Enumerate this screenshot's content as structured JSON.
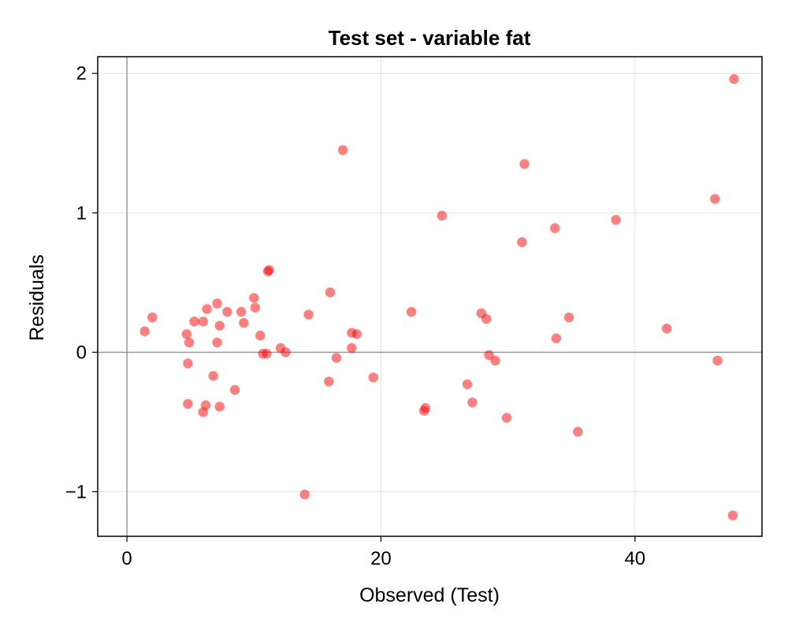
{
  "chart_data": {
    "type": "scatter",
    "title": "Test set - variable fat",
    "xlabel": "Observed (Test)",
    "ylabel": "Residuals",
    "xlim": [
      -2.3,
      50
    ],
    "ylim": [
      -1.32,
      2.12
    ],
    "x_ticks": [
      0,
      20,
      40
    ],
    "y_ticks": [
      -1,
      0,
      1,
      2
    ],
    "y_tick_labels": [
      "−1",
      "0",
      "1",
      "2"
    ],
    "grid": true,
    "reference_lines": {
      "x": 0,
      "y": 0
    },
    "marker_color": "#ff0000",
    "marker_opacity": 0.5,
    "points": [
      {
        "x": 1.4,
        "y": 0.15
      },
      {
        "x": 2.0,
        "y": 0.25
      },
      {
        "x": 4.7,
        "y": 0.13
      },
      {
        "x": 4.9,
        "y": 0.07
      },
      {
        "x": 4.8,
        "y": -0.08
      },
      {
        "x": 4.8,
        "y": -0.37
      },
      {
        "x": 5.3,
        "y": 0.22
      },
      {
        "x": 6.0,
        "y": 0.22
      },
      {
        "x": 6.3,
        "y": 0.31
      },
      {
        "x": 6.0,
        "y": -0.43
      },
      {
        "x": 6.2,
        "y": -0.38
      },
      {
        "x": 6.8,
        "y": -0.17
      },
      {
        "x": 7.1,
        "y": 0.35
      },
      {
        "x": 7.1,
        "y": 0.07
      },
      {
        "x": 7.3,
        "y": 0.19
      },
      {
        "x": 7.3,
        "y": -0.39
      },
      {
        "x": 7.9,
        "y": 0.29
      },
      {
        "x": 8.5,
        "y": -0.27
      },
      {
        "x": 9.0,
        "y": 0.29
      },
      {
        "x": 9.2,
        "y": 0.21
      },
      {
        "x": 10.0,
        "y": 0.39
      },
      {
        "x": 10.1,
        "y": 0.32
      },
      {
        "x": 10.5,
        "y": 0.12
      },
      {
        "x": 10.7,
        "y": -0.01
      },
      {
        "x": 11.0,
        "y": -0.01
      },
      {
        "x": 11.1,
        "y": 0.58
      },
      {
        "x": 11.2,
        "y": 0.59
      },
      {
        "x": 12.1,
        "y": 0.03
      },
      {
        "x": 12.5,
        "y": 0.0
      },
      {
        "x": 14.0,
        "y": -1.02
      },
      {
        "x": 14.3,
        "y": 0.27
      },
      {
        "x": 15.9,
        "y": -0.21
      },
      {
        "x": 16.0,
        "y": 0.43
      },
      {
        "x": 16.5,
        "y": -0.04
      },
      {
        "x": 17.0,
        "y": 1.45
      },
      {
        "x": 17.7,
        "y": 0.14
      },
      {
        "x": 17.7,
        "y": 0.03
      },
      {
        "x": 18.1,
        "y": 0.13
      },
      {
        "x": 19.4,
        "y": -0.18
      },
      {
        "x": 22.4,
        "y": 0.29
      },
      {
        "x": 23.4,
        "y": -0.42
      },
      {
        "x": 23.5,
        "y": -0.4
      },
      {
        "x": 24.8,
        "y": 0.98
      },
      {
        "x": 26.8,
        "y": -0.23
      },
      {
        "x": 27.2,
        "y": -0.36
      },
      {
        "x": 27.9,
        "y": 0.28
      },
      {
        "x": 28.3,
        "y": 0.24
      },
      {
        "x": 28.5,
        "y": -0.02
      },
      {
        "x": 29.0,
        "y": -0.06
      },
      {
        "x": 29.9,
        "y": -0.47
      },
      {
        "x": 31.1,
        "y": 0.79
      },
      {
        "x": 31.3,
        "y": 1.35
      },
      {
        "x": 33.7,
        "y": 0.89
      },
      {
        "x": 33.8,
        "y": 0.1
      },
      {
        "x": 34.8,
        "y": 0.25
      },
      {
        "x": 35.5,
        "y": -0.57
      },
      {
        "x": 38.5,
        "y": 0.95
      },
      {
        "x": 42.5,
        "y": 0.17
      },
      {
        "x": 46.3,
        "y": 1.1
      },
      {
        "x": 46.5,
        "y": -0.06
      },
      {
        "x": 47.8,
        "y": 1.96
      },
      {
        "x": 47.7,
        "y": -1.17
      }
    ]
  }
}
